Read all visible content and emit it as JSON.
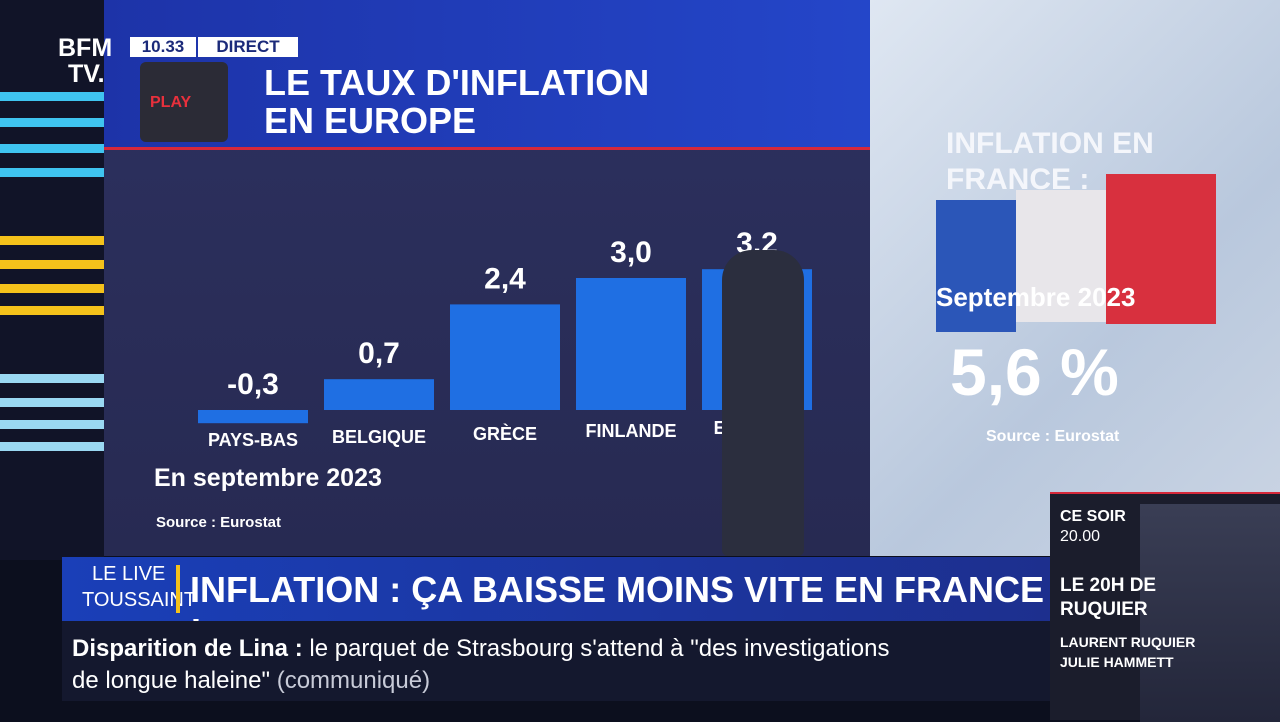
{
  "channel": {
    "logo_top": "BFM",
    "logo_bottom": "TV.",
    "time": "10.33",
    "status": "DIRECT",
    "play": "PLAY"
  },
  "chart_data": {
    "type": "bar",
    "title": "LE TAUX D'INFLATION EN EUROPE",
    "categories": [
      "PAYS-BAS",
      "BELGIQUE",
      "GRÈCE",
      "FINLANDE",
      "ESPAGNE"
    ],
    "values": [
      -0.3,
      0.7,
      2.4,
      3.0,
      3.2
    ],
    "value_labels": [
      "-0,3",
      "0,7",
      "2,4",
      "3,0",
      "3,2"
    ],
    "color": "#1f6fe3",
    "subtitle": "En septembre 2023",
    "source": "Source : Eurostat"
  },
  "france_panel": {
    "title": "INFLATION EN FRANCE :",
    "date": "Septembre 2023",
    "value": "5,6 %",
    "source": "Source : Eurostat"
  },
  "banner": {
    "show_top": "LE LIVE",
    "show_bottom": "TOUSSAINT",
    "headline": "INFLATION : ÇA BAISSE MOINS VITE EN FRANCE !"
  },
  "ticker": {
    "topic": "Disparition de Lina :",
    "text": "le parquet de Strasbourg s'attend à \"des investigations de longue haleine\"",
    "note": "(communiqué)"
  },
  "promo": {
    "when": "CE SOIR",
    "time": "20.00",
    "program": "LE 20H DE RUQUIER",
    "host1": "LAURENT RUQUIER",
    "host2": "JULIE HAMMETT"
  }
}
